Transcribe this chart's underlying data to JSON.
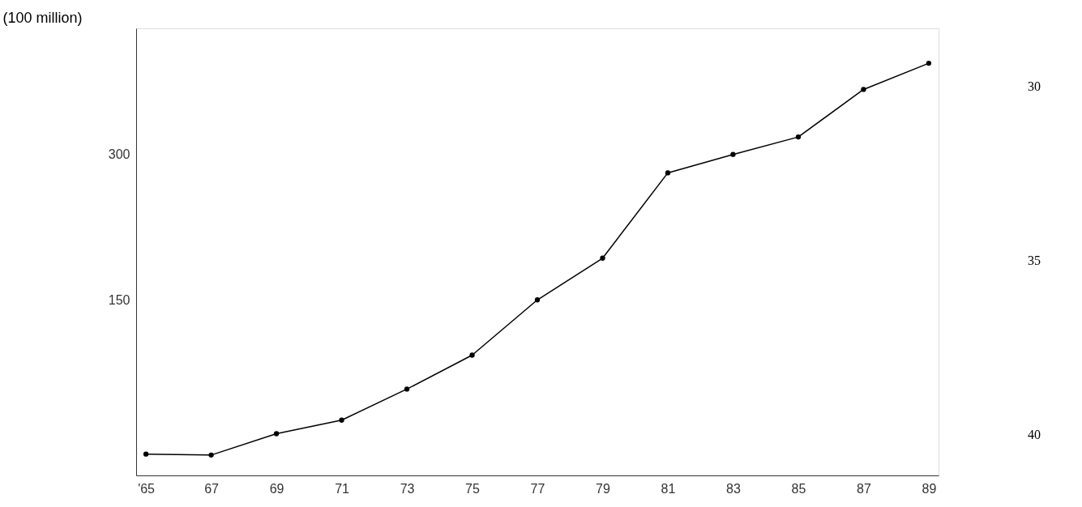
{
  "chart_data": {
    "type": "line",
    "ylabel": "(100 million)",
    "categories": [
      "'65",
      "67",
      "69",
      "71",
      "73",
      "75",
      "77",
      "79",
      "81",
      "83",
      "85",
      "87",
      "89"
    ],
    "series": [
      {
        "color": "#000000",
        "values": [
          -9,
          -10,
          12,
          26,
          58,
          93,
          150,
          193,
          281,
          300,
          318,
          367,
          394
        ]
      }
    ],
    "ylim": [
      -31,
      430
    ],
    "yticks": [
      150,
      300
    ],
    "grid": false,
    "legend": false,
    "marker": "circle",
    "line_style": "solid",
    "annotations": [
      "30",
      "35",
      "40"
    ]
  }
}
